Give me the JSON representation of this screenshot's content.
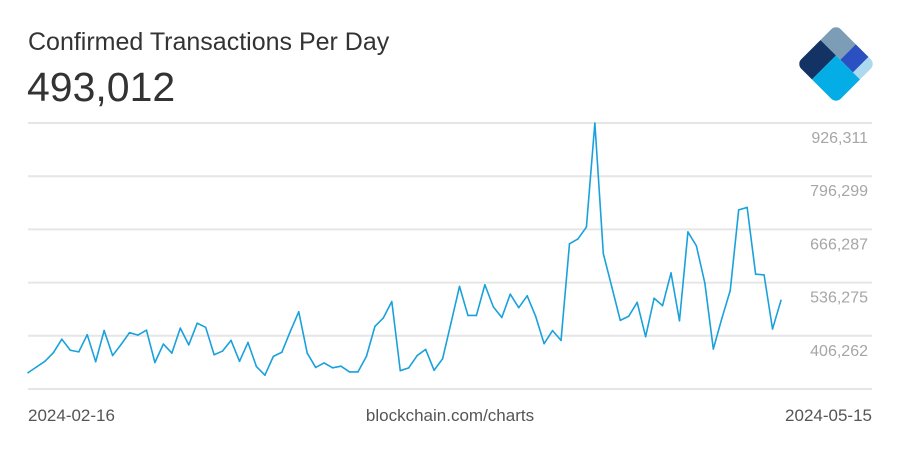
{
  "header": {
    "title": "Confirmed Transactions Per Day",
    "current_value": "493,012"
  },
  "footer": {
    "start_date": "2024-02-16",
    "source": "blockchain.com/charts",
    "end_date": "2024-05-15"
  },
  "colors": {
    "line": "#1aa1dc",
    "grid": "#e6e6e6",
    "tick_text": "#a6a6a6",
    "logo_navy": "#133364",
    "logo_gray": "#7c9db5",
    "logo_blue": "#2b50c2",
    "logo_cyan": "#04ade5",
    "logo_light": "#acd9ef"
  },
  "chart_data": {
    "type": "line",
    "title": "Confirmed Transactions Per Day",
    "xlabel": "",
    "ylabel": "",
    "x_start": "2024-02-16",
    "x_end": "2024-05-15",
    "ylim": [
      276251,
      926311
    ],
    "yticks": [
      406262,
      536275,
      666287,
      796299,
      926311
    ],
    "ytick_labels": [
      "406,262",
      "536,275",
      "666,287",
      "796,299",
      "926,311"
    ],
    "grid": true,
    "series": [
      {
        "name": "Confirmed Transactions Per Day",
        "values": [
          316000,
          330000,
          344000,
          365000,
          398000,
          371000,
          367000,
          409000,
          343000,
          419000,
          358000,
          385000,
          414000,
          408000,
          420000,
          341000,
          386000,
          364000,
          425000,
          384000,
          437000,
          427000,
          360000,
          369000,
          395000,
          344000,
          390000,
          331000,
          310000,
          356000,
          366000,
          417000,
          465000,
          364000,
          329000,
          340000,
          328000,
          332000,
          318000,
          318000,
          356000,
          429000,
          450000,
          490000,
          321000,
          328000,
          358000,
          373000,
          322000,
          350000,
          438000,
          527000,
          456000,
          456000,
          531000,
          477000,
          451000,
          508000,
          475000,
          504000,
          454000,
          387000,
          419000,
          395000,
          631000,
          643000,
          672000,
          926000,
          607000,
          526000,
          444000,
          454000,
          488000,
          404000,
          498000,
          480000,
          560000,
          443000,
          660000,
          626000,
          535000,
          374000,
          448000,
          517000,
          714000,
          720000,
          557000,
          555000,
          423000,
          493012
        ]
      }
    ]
  }
}
